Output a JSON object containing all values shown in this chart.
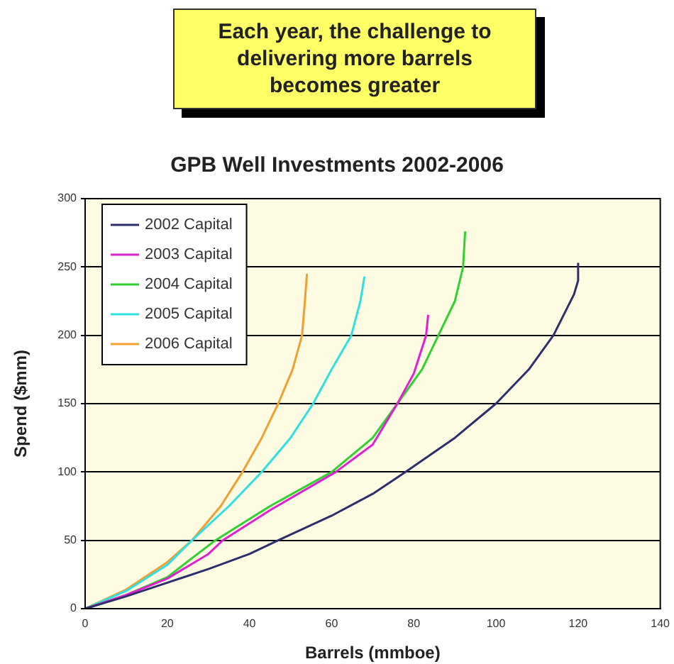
{
  "chart_data": {
    "type": "line",
    "title": "GPB Well Investments 2002-2006",
    "xlabel": "Barrels (mmboe)",
    "ylabel": "Spend ($mm)",
    "annotations": [
      "Each year, the challenge to delivering more barrels becomes greater"
    ],
    "xlim": [
      0,
      140
    ],
    "xticks": [
      0,
      20,
      40,
      60,
      80,
      100,
      120,
      140
    ],
    "ylim": [
      0,
      300
    ],
    "yticks": [
      0,
      50,
      100,
      150,
      200,
      250,
      300
    ],
    "grid": "y",
    "legend": "top left",
    "marker": "none",
    "line_style": "solid",
    "series": [
      {
        "name": "2002 Capital",
        "color": "#2e2e6e",
        "x": [
          0,
          10,
          20,
          30,
          40,
          47,
          60,
          70,
          78,
          90,
          100,
          108,
          114,
          119,
          120,
          120
        ],
        "values": [
          0,
          9,
          19,
          29,
          40,
          50,
          68,
          84,
          100,
          125,
          150,
          175,
          200,
          230,
          240,
          253
        ]
      },
      {
        "name": "2003 Capital",
        "color": "#e020d0",
        "x": [
          0,
          10,
          20,
          30,
          33.5,
          45,
          61,
          70,
          76,
          80,
          83,
          83.5
        ],
        "values": [
          0,
          10,
          22,
          40,
          50,
          72,
          100,
          120,
          150,
          172,
          200,
          215
        ]
      },
      {
        "name": "2004 Capital",
        "color": "#30d030",
        "x": [
          0,
          10,
          20,
          31.7,
          45,
          60,
          70,
          76,
          82,
          86,
          90,
          92,
          92.5
        ],
        "values": [
          0,
          10,
          23,
          50,
          75,
          100,
          125,
          150,
          175,
          200,
          225,
          250,
          276
        ]
      },
      {
        "name": "2005 Capital",
        "color": "#30e0e0",
        "x": [
          0,
          10,
          20,
          26,
          35,
          43,
          50,
          55.5,
          60,
          64.8,
          67,
          68
        ],
        "values": [
          0,
          13,
          32,
          50,
          75,
          100,
          125,
          150,
          175,
          200,
          225,
          243
        ]
      },
      {
        "name": "2006 Capital",
        "color": "#f0a030",
        "x": [
          0,
          10,
          20,
          26,
          33,
          38.3,
          43,
          47,
          50.5,
          52.8,
          53.5,
          54
        ],
        "values": [
          0,
          14,
          34,
          50,
          75,
          100,
          125,
          150,
          175,
          200,
          225,
          245
        ]
      }
    ]
  }
}
